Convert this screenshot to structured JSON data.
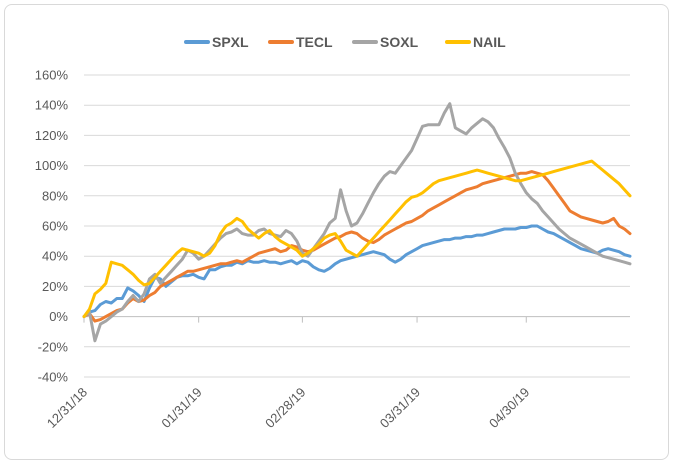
{
  "chart_data": {
    "type": "line",
    "title": "",
    "xlabel": "",
    "ylabel": "",
    "ylim": [
      -40,
      160
    ],
    "y_ticks": [
      -40,
      -20,
      0,
      20,
      40,
      60,
      80,
      100,
      120,
      140,
      160
    ],
    "y_tick_labels": [
      "-40%",
      "-20%",
      "0%",
      "20%",
      "40%",
      "60%",
      "80%",
      "100%",
      "120%",
      "140%",
      "160%"
    ],
    "x_ticks": [
      "12/31/18",
      "01/31/19",
      "02/28/19",
      "03/31/19",
      "04/30/19"
    ],
    "x_tick_positions": [
      0,
      21,
      40,
      61,
      81
    ],
    "grid": "horizontal",
    "legend_position": "top",
    "series": [
      {
        "name": "SPXL",
        "color": "#5b9bd5",
        "values": [
          0,
          3,
          4,
          8,
          10,
          9,
          12,
          12,
          19,
          17,
          14,
          10,
          19,
          26,
          25,
          20,
          23,
          26,
          27,
          27,
          28,
          26,
          25,
          31,
          31,
          33,
          34,
          34,
          36,
          35,
          37,
          36,
          36,
          37,
          36,
          36,
          35,
          36,
          37,
          35,
          37,
          36,
          33,
          31,
          30,
          32,
          35,
          37,
          38,
          39,
          40,
          41,
          42,
          43,
          42,
          41,
          38,
          36,
          38,
          41,
          43,
          45,
          47,
          48,
          49,
          50,
          51,
          51,
          52,
          52,
          53,
          53,
          54,
          54,
          55,
          56,
          57,
          58,
          58,
          58,
          59,
          59,
          60,
          60,
          58,
          56,
          55,
          53,
          51,
          49,
          47,
          45,
          44,
          43,
          42,
          44,
          45,
          44,
          43,
          41,
          40
        ]
      },
      {
        "name": "TECL",
        "color": "#ed7d31",
        "values": [
          0,
          2,
          -3,
          -2,
          0,
          2,
          4,
          5,
          9,
          12,
          10,
          11,
          14,
          16,
          20,
          22,
          24,
          26,
          28,
          30,
          30,
          31,
          32,
          33,
          34,
          35,
          35,
          36,
          37,
          36,
          38,
          40,
          42,
          43,
          44,
          45,
          43,
          44,
          47,
          46,
          44,
          43,
          44,
          46,
          48,
          50,
          52,
          53,
          55,
          56,
          55,
          52,
          50,
          49,
          51,
          54,
          56,
          58,
          60,
          62,
          63,
          65,
          67,
          70,
          72,
          74,
          76,
          78,
          80,
          82,
          84,
          85,
          86,
          88,
          89,
          90,
          91,
          92,
          93,
          94,
          95,
          95,
          96,
          95,
          94,
          90,
          85,
          80,
          75,
          70,
          68,
          66,
          65,
          64,
          63,
          62,
          63,
          65,
          60,
          58,
          55
        ]
      },
      {
        "name": "SOXL",
        "color": "#a5a5a5",
        "values": [
          0,
          3,
          -16,
          -5,
          -3,
          0,
          3,
          5,
          10,
          14,
          10,
          15,
          25,
          28,
          22,
          26,
          30,
          34,
          38,
          44,
          42,
          38,
          40,
          44,
          48,
          52,
          55,
          56,
          58,
          55,
          54,
          54,
          57,
          58,
          55,
          54,
          53,
          57,
          55,
          50,
          42,
          40,
          45,
          50,
          55,
          62,
          65,
          84,
          70,
          60,
          62,
          68,
          75,
          82,
          88,
          93,
          96,
          95,
          100,
          105,
          110,
          118,
          126,
          127,
          127,
          127,
          135,
          141,
          125,
          123,
          121,
          125,
          128,
          131,
          129,
          125,
          118,
          112,
          105,
          95,
          88,
          82,
          78,
          75,
          70,
          66,
          62,
          58,
          55,
          52,
          50,
          48,
          46,
          44,
          42,
          40,
          39,
          38,
          37,
          36,
          35
        ]
      },
      {
        "name": "NAIL",
        "color": "#ffc000",
        "values": [
          0,
          5,
          15,
          18,
          22,
          36,
          35,
          34,
          31,
          28,
          24,
          21,
          22,
          26,
          30,
          34,
          38,
          42,
          45,
          44,
          43,
          42,
          40,
          42,
          47,
          55,
          60,
          62,
          65,
          63,
          58,
          55,
          52,
          55,
          57,
          53,
          50,
          48,
          46,
          44,
          40,
          42,
          45,
          48,
          52,
          54,
          55,
          50,
          44,
          42,
          40,
          44,
          48,
          52,
          56,
          60,
          64,
          68,
          72,
          76,
          79,
          80,
          82,
          85,
          88,
          90,
          91,
          92,
          93,
          94,
          95,
          96,
          97,
          96,
          95,
          94,
          93,
          92,
          91,
          90,
          90,
          91,
          92,
          93,
          94,
          95,
          96,
          97,
          98,
          99,
          100,
          101,
          102,
          103,
          100,
          97,
          94,
          91,
          88,
          84,
          80
        ]
      }
    ]
  }
}
